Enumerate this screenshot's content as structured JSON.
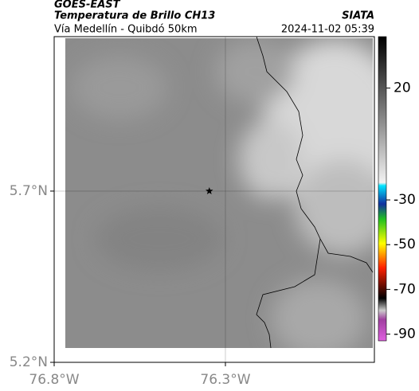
{
  "header": {
    "title": "GOES-EAST",
    "subtitle": "Temperatura de Brillo CH13",
    "brand": "SIATA",
    "route": "Vía Medellín - Quibdó 50km",
    "timestamp": "2024-11-02 05:39"
  },
  "map": {
    "xlim": [
      -76.8,
      -75.865
    ],
    "ylim": [
      5.2,
      6.151
    ],
    "xticks": [
      {
        "value": -76.8,
        "label": "76.8°W"
      },
      {
        "value": -76.3,
        "label": "76.3°W"
      }
    ],
    "yticks": [
      {
        "value": 5.2,
        "label": "5.2°N"
      },
      {
        "value": 5.7,
        "label": "5.7°N"
      }
    ],
    "grid": true,
    "marker": {
      "lon": -76.347,
      "lat": 5.7
    }
  },
  "colorbar": {
    "lim": [
      -93,
      43
    ],
    "ticks": [
      20,
      -30,
      -50,
      -70,
      -90
    ]
  }
}
